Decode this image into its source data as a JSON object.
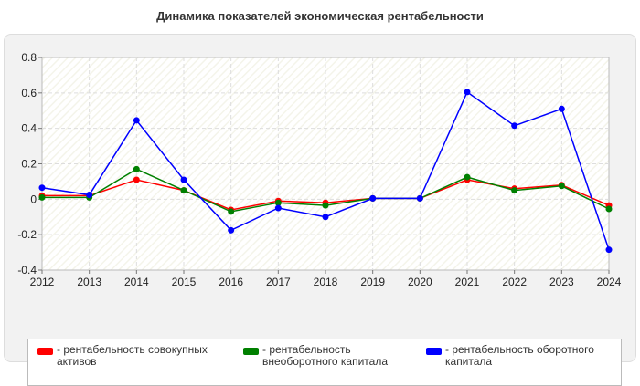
{
  "chart_data": {
    "type": "line",
    "title": "Динамика показателей экономическая рентабельности",
    "x": [
      "2012",
      "2013",
      "2014",
      "2015",
      "2016",
      "2017",
      "2018",
      "2019",
      "2020",
      "2021",
      "2022",
      "2023",
      "2024"
    ],
    "ylim": [
      -0.4,
      0.8
    ],
    "yticks": [
      "0.8",
      "0.6",
      "0.4",
      "0.2",
      "0",
      "-0.2",
      "-0.4"
    ],
    "grid": true,
    "legend_position": "bottom",
    "series": [
      {
        "name": "- рентабельность совокупных активов",
        "color": "#ff0000",
        "values": [
          0.02,
          0.02,
          0.11,
          0.05,
          -0.06,
          -0.01,
          -0.02,
          0.005,
          0.005,
          0.11,
          0.06,
          0.08,
          -0.035
        ]
      },
      {
        "name": "- рентабельность внеоборотного капитала",
        "color": "#008000",
        "values": [
          0.01,
          0.01,
          0.17,
          0.05,
          -0.07,
          -0.02,
          -0.035,
          0.005,
          0.005,
          0.125,
          0.05,
          0.075,
          -0.055
        ]
      },
      {
        "name": "- рентабельность оборотного капитала",
        "color": "#0000ff",
        "values": [
          0.065,
          0.025,
          0.445,
          0.11,
          -0.175,
          -0.05,
          -0.1,
          0.005,
          0.005,
          0.605,
          0.415,
          0.51,
          -0.285
        ]
      }
    ]
  }
}
